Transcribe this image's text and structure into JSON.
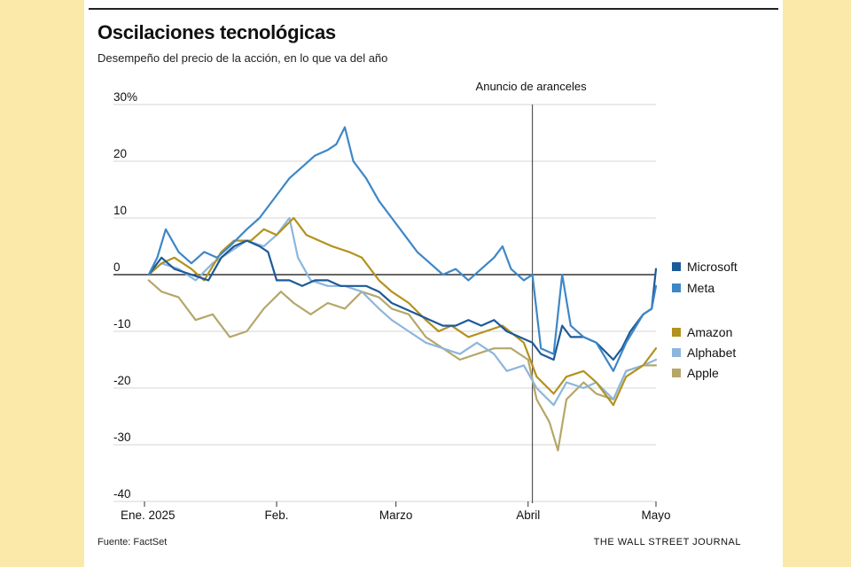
{
  "title": "Oscilaciones tecnológicas",
  "subtitle": "Desempeño del precio de la acción, en lo que va del año",
  "source": "Fuente: FactSet",
  "publisher": "THE WALL STREET JOURNAL",
  "chart_data": {
    "type": "line",
    "xlabel": "",
    "ylabel": "",
    "ylim": [
      -40,
      30
    ],
    "yticks": [
      30,
      20,
      10,
      0,
      -10,
      -20,
      -30,
      -40
    ],
    "ytick_labels": [
      "30%",
      "20",
      "10",
      "0",
      "-10",
      "-20",
      "-30",
      "-40"
    ],
    "xlim": [
      "2025-01-01",
      "2025-05-01"
    ],
    "xticks": [
      {
        "date": "2025-01-01",
        "label": "Ene. 2025"
      },
      {
        "date": "2025-02-01",
        "label": "Feb."
      },
      {
        "date": "2025-03-01",
        "label": "Marzo"
      },
      {
        "date": "2025-04-01",
        "label": "Abril"
      },
      {
        "date": "2025-05-01",
        "label": "Mayo"
      }
    ],
    "grid": true,
    "legend_position": "right",
    "annotation": {
      "date": "2025-04-02",
      "text": "Anuncio de aranceles"
    },
    "series": [
      {
        "name": "Microsoft",
        "color": "#1c5a99",
        "points": [
          [
            "2025-01-02",
            0
          ],
          [
            "2025-01-05",
            3
          ],
          [
            "2025-01-08",
            1
          ],
          [
            "2025-01-12",
            0
          ],
          [
            "2025-01-16",
            -1
          ],
          [
            "2025-01-19",
            3
          ],
          [
            "2025-01-22",
            5
          ],
          [
            "2025-01-25",
            6
          ],
          [
            "2025-01-28",
            5
          ],
          [
            "2025-01-30",
            4
          ],
          [
            "2025-02-01",
            -1
          ],
          [
            "2025-02-04",
            -1
          ],
          [
            "2025-02-07",
            -2
          ],
          [
            "2025-02-10",
            -1
          ],
          [
            "2025-02-13",
            -1
          ],
          [
            "2025-02-16",
            -2
          ],
          [
            "2025-02-19",
            -2
          ],
          [
            "2025-02-22",
            -2
          ],
          [
            "2025-02-25",
            -3
          ],
          [
            "2025-02-28",
            -5
          ],
          [
            "2025-03-03",
            -6
          ],
          [
            "2025-03-06",
            -7
          ],
          [
            "2025-03-09",
            -8
          ],
          [
            "2025-03-12",
            -9
          ],
          [
            "2025-03-15",
            -9
          ],
          [
            "2025-03-18",
            -8
          ],
          [
            "2025-03-21",
            -9
          ],
          [
            "2025-03-24",
            -8
          ],
          [
            "2025-03-27",
            -10
          ],
          [
            "2025-03-30",
            -11
          ],
          [
            "2025-04-02",
            -12
          ],
          [
            "2025-04-04",
            -14
          ],
          [
            "2025-04-07",
            -15
          ],
          [
            "2025-04-09",
            -9
          ],
          [
            "2025-04-11",
            -11
          ],
          [
            "2025-04-14",
            -11
          ],
          [
            "2025-04-17",
            -12
          ],
          [
            "2025-04-21",
            -15
          ],
          [
            "2025-04-23",
            -13
          ],
          [
            "2025-04-25",
            -10
          ],
          [
            "2025-04-28",
            -7
          ],
          [
            "2025-04-30",
            -6
          ],
          [
            "2025-05-01",
            1
          ]
        ]
      },
      {
        "name": "Meta",
        "color": "#3d87c7",
        "points": [
          [
            "2025-01-02",
            0
          ],
          [
            "2025-01-04",
            3
          ],
          [
            "2025-01-06",
            8
          ],
          [
            "2025-01-09",
            4
          ],
          [
            "2025-01-12",
            2
          ],
          [
            "2025-01-15",
            4
          ],
          [
            "2025-01-18",
            3
          ],
          [
            "2025-01-21",
            5
          ],
          [
            "2025-01-25",
            8
          ],
          [
            "2025-01-28",
            10
          ],
          [
            "2025-02-01",
            14
          ],
          [
            "2025-02-04",
            17
          ],
          [
            "2025-02-07",
            19
          ],
          [
            "2025-02-10",
            21
          ],
          [
            "2025-02-13",
            22
          ],
          [
            "2025-02-15",
            23
          ],
          [
            "2025-02-17",
            26
          ],
          [
            "2025-02-19",
            20
          ],
          [
            "2025-02-22",
            17
          ],
          [
            "2025-02-25",
            13
          ],
          [
            "2025-02-28",
            10
          ],
          [
            "2025-03-03",
            7
          ],
          [
            "2025-03-06",
            4
          ],
          [
            "2025-03-09",
            2
          ],
          [
            "2025-03-12",
            0
          ],
          [
            "2025-03-15",
            1
          ],
          [
            "2025-03-18",
            -1
          ],
          [
            "2025-03-21",
            1
          ],
          [
            "2025-03-24",
            3
          ],
          [
            "2025-03-26",
            5
          ],
          [
            "2025-03-28",
            1
          ],
          [
            "2025-03-31",
            -1
          ],
          [
            "2025-04-02",
            0
          ],
          [
            "2025-04-04",
            -13
          ],
          [
            "2025-04-07",
            -14
          ],
          [
            "2025-04-09",
            0
          ],
          [
            "2025-04-11",
            -9
          ],
          [
            "2025-04-14",
            -11
          ],
          [
            "2025-04-17",
            -12
          ],
          [
            "2025-04-21",
            -17
          ],
          [
            "2025-04-24",
            -12
          ],
          [
            "2025-04-28",
            -7
          ],
          [
            "2025-04-30",
            -6
          ],
          [
            "2025-05-01",
            -2
          ]
        ]
      },
      {
        "name": "Amazon",
        "color": "#b3921d",
        "points": [
          [
            "2025-01-02",
            0
          ],
          [
            "2025-01-05",
            2
          ],
          [
            "2025-01-08",
            3
          ],
          [
            "2025-01-12",
            1
          ],
          [
            "2025-01-15",
            -1
          ],
          [
            "2025-01-19",
            4
          ],
          [
            "2025-01-22",
            6
          ],
          [
            "2025-01-26",
            6
          ],
          [
            "2025-01-29",
            8
          ],
          [
            "2025-02-01",
            7
          ],
          [
            "2025-02-05",
            10
          ],
          [
            "2025-02-08",
            7
          ],
          [
            "2025-02-11",
            6
          ],
          [
            "2025-02-14",
            5
          ],
          [
            "2025-02-18",
            4
          ],
          [
            "2025-02-21",
            3
          ],
          [
            "2025-02-25",
            -1
          ],
          [
            "2025-02-28",
            -3
          ],
          [
            "2025-03-04",
            -5
          ],
          [
            "2025-03-08",
            -8
          ],
          [
            "2025-03-11",
            -10
          ],
          [
            "2025-03-14",
            -9
          ],
          [
            "2025-03-18",
            -11
          ],
          [
            "2025-03-22",
            -10
          ],
          [
            "2025-03-26",
            -9
          ],
          [
            "2025-03-31",
            -12
          ],
          [
            "2025-04-03",
            -18
          ],
          [
            "2025-04-07",
            -21
          ],
          [
            "2025-04-10",
            -18
          ],
          [
            "2025-04-14",
            -17
          ],
          [
            "2025-04-17",
            -19
          ],
          [
            "2025-04-21",
            -23
          ],
          [
            "2025-04-24",
            -18
          ],
          [
            "2025-04-28",
            -16
          ],
          [
            "2025-05-01",
            -13
          ]
        ]
      },
      {
        "name": "Alphabet",
        "color": "#8db6dc",
        "points": [
          [
            "2025-01-02",
            0
          ],
          [
            "2025-01-05",
            2
          ],
          [
            "2025-01-09",
            1
          ],
          [
            "2025-01-13",
            -1
          ],
          [
            "2025-01-17",
            2
          ],
          [
            "2025-01-21",
            4
          ],
          [
            "2025-01-25",
            6
          ],
          [
            "2025-01-29",
            5
          ],
          [
            "2025-02-01",
            7
          ],
          [
            "2025-02-04",
            10
          ],
          [
            "2025-02-06",
            3
          ],
          [
            "2025-02-09",
            -1
          ],
          [
            "2025-02-13",
            -2
          ],
          [
            "2025-02-17",
            -2
          ],
          [
            "2025-02-21",
            -3
          ],
          [
            "2025-02-25",
            -6
          ],
          [
            "2025-02-28",
            -8
          ],
          [
            "2025-03-04",
            -10
          ],
          [
            "2025-03-08",
            -12
          ],
          [
            "2025-03-12",
            -13
          ],
          [
            "2025-03-16",
            -14
          ],
          [
            "2025-03-20",
            -12
          ],
          [
            "2025-03-24",
            -14
          ],
          [
            "2025-03-27",
            -17
          ],
          [
            "2025-03-31",
            -16
          ],
          [
            "2025-04-03",
            -20
          ],
          [
            "2025-04-07",
            -23
          ],
          [
            "2025-04-10",
            -19
          ],
          [
            "2025-04-14",
            -20
          ],
          [
            "2025-04-17",
            -19
          ],
          [
            "2025-04-21",
            -22
          ],
          [
            "2025-04-24",
            -17
          ],
          [
            "2025-04-28",
            -16
          ],
          [
            "2025-05-01",
            -15
          ]
        ]
      },
      {
        "name": "Apple",
        "color": "#b5a76a",
        "points": [
          [
            "2025-01-02",
            -1
          ],
          [
            "2025-01-05",
            -3
          ],
          [
            "2025-01-09",
            -4
          ],
          [
            "2025-01-13",
            -8
          ],
          [
            "2025-01-17",
            -7
          ],
          [
            "2025-01-21",
            -11
          ],
          [
            "2025-01-25",
            -10
          ],
          [
            "2025-01-29",
            -6
          ],
          [
            "2025-02-02",
            -3
          ],
          [
            "2025-02-05",
            -5
          ],
          [
            "2025-02-09",
            -7
          ],
          [
            "2025-02-13",
            -5
          ],
          [
            "2025-02-17",
            -6
          ],
          [
            "2025-02-21",
            -3
          ],
          [
            "2025-02-25",
            -4
          ],
          [
            "2025-02-28",
            -6
          ],
          [
            "2025-03-04",
            -7
          ],
          [
            "2025-03-08",
            -11
          ],
          [
            "2025-03-12",
            -13
          ],
          [
            "2025-03-16",
            -15
          ],
          [
            "2025-03-20",
            -14
          ],
          [
            "2025-03-24",
            -13
          ],
          [
            "2025-03-28",
            -13
          ],
          [
            "2025-04-01",
            -15
          ],
          [
            "2025-04-03",
            -22
          ],
          [
            "2025-04-06",
            -26
          ],
          [
            "2025-04-08",
            -31
          ],
          [
            "2025-04-10",
            -22
          ],
          [
            "2025-04-14",
            -19
          ],
          [
            "2025-04-17",
            -21
          ],
          [
            "2025-04-21",
            -22
          ],
          [
            "2025-04-24",
            -17
          ],
          [
            "2025-04-28",
            -16
          ],
          [
            "2025-05-01",
            -16
          ]
        ]
      }
    ]
  }
}
